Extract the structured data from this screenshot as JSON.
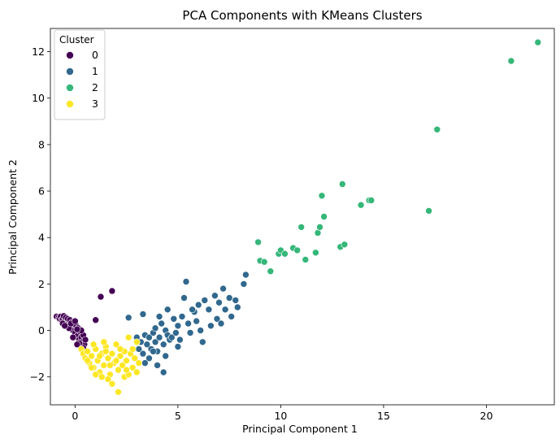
{
  "chart_data": {
    "type": "scatter",
    "title": "PCA Components with KMeans Clusters",
    "xlabel": "Principal Component 1",
    "ylabel": "Principal Component 2",
    "xlim": [
      -1.2,
      23.3
    ],
    "ylim": [
      -3.2,
      13.0
    ],
    "xticks": [
      0,
      5,
      10,
      15,
      20
    ],
    "yticks": [
      -2,
      0,
      2,
      4,
      6,
      8,
      10,
      12
    ],
    "grid": false,
    "legend": {
      "title": "Cluster",
      "position": "top-left"
    },
    "series": [
      {
        "name": "0",
        "color": "#440154",
        "points": [
          [
            -0.9,
            0.6
          ],
          [
            -0.8,
            0.55
          ],
          [
            -0.75,
            0.5
          ],
          [
            -0.7,
            0.6
          ],
          [
            -0.65,
            0.45
          ],
          [
            -0.6,
            0.5
          ],
          [
            -0.55,
            0.62
          ],
          [
            -0.5,
            0.4
          ],
          [
            -0.45,
            0.55
          ],
          [
            -0.4,
            0.3
          ],
          [
            -0.35,
            0.5
          ],
          [
            -0.3,
            0.2
          ],
          [
            -0.25,
            0.45
          ],
          [
            -0.2,
            0.1
          ],
          [
            -0.15,
            0.35
          ],
          [
            -0.1,
            0.0
          ],
          [
            -0.05,
            0.25
          ],
          [
            0.0,
            -0.1
          ],
          [
            0.05,
            0.2
          ],
          [
            0.1,
            -0.25
          ],
          [
            0.15,
            0.1
          ],
          [
            0.2,
            -0.4
          ],
          [
            0.25,
            -0.05
          ],
          [
            0.3,
            -0.3
          ],
          [
            0.35,
            -0.5
          ],
          [
            0.4,
            -0.2
          ],
          [
            0.45,
            -0.6
          ],
          [
            0.5,
            -0.4
          ],
          [
            -0.3,
            0.1
          ],
          [
            -0.2,
            0.3
          ],
          [
            0.0,
            0.4
          ],
          [
            -0.6,
            0.3
          ],
          [
            -0.5,
            0.2
          ],
          [
            0.3,
            0.0
          ],
          [
            0.1,
            0.05
          ],
          [
            -0.1,
            -0.3
          ],
          [
            0.2,
            -0.55
          ],
          [
            0.4,
            -0.75
          ],
          [
            0.1,
            -0.6
          ],
          [
            1.8,
            1.7
          ],
          [
            1.25,
            1.45
          ],
          [
            1.0,
            0.45
          ]
        ]
      },
      {
        "name": "1",
        "color": "#31688e",
        "points": [
          [
            2.6,
            0.55
          ],
          [
            3.3,
            0.7
          ],
          [
            3.0,
            -0.3
          ],
          [
            3.2,
            -0.5
          ],
          [
            3.4,
            -0.2
          ],
          [
            3.5,
            -0.6
          ],
          [
            3.6,
            -0.3
          ],
          [
            3.7,
            -0.8
          ],
          [
            3.8,
            -0.1
          ],
          [
            3.9,
            -0.5
          ],
          [
            4.0,
            -0.9
          ],
          [
            4.1,
            -0.3
          ],
          [
            4.2,
            0.3
          ],
          [
            4.3,
            -0.6
          ],
          [
            4.4,
            0.0
          ],
          [
            4.5,
            -0.2
          ],
          [
            4.6,
            -0.4
          ],
          [
            3.3,
            -1.0
          ],
          [
            3.6,
            -1.2
          ],
          [
            4.0,
            -1.5
          ],
          [
            4.3,
            -1.8
          ],
          [
            4.4,
            -1.1
          ],
          [
            4.1,
            0.6
          ],
          [
            4.5,
            0.9
          ],
          [
            5.0,
            0.2
          ],
          [
            5.1,
            -0.4
          ],
          [
            5.2,
            0.6
          ],
          [
            5.3,
            1.4
          ],
          [
            5.4,
            2.1
          ],
          [
            5.5,
            0.3
          ],
          [
            5.6,
            -0.1
          ],
          [
            5.8,
            0.8
          ],
          [
            5.9,
            0.4
          ],
          [
            6.0,
            1.1
          ],
          [
            6.2,
            -0.5
          ],
          [
            6.3,
            1.3
          ],
          [
            6.5,
            0.9
          ],
          [
            6.6,
            0.2
          ],
          [
            6.8,
            1.5
          ],
          [
            6.9,
            0.5
          ],
          [
            7.0,
            1.2
          ],
          [
            7.1,
            0.3
          ],
          [
            7.2,
            1.8
          ],
          [
            7.3,
            0.9
          ],
          [
            7.5,
            1.4
          ],
          [
            7.6,
            0.6
          ],
          [
            7.8,
            1.3
          ],
          [
            7.9,
            1.0
          ],
          [
            8.2,
            2.0
          ],
          [
            8.3,
            2.4
          ],
          [
            5.0,
            -0.7
          ],
          [
            4.8,
            0.5
          ],
          [
            3.9,
            0.1
          ],
          [
            4.7,
            -0.3
          ],
          [
            3.1,
            -0.8
          ],
          [
            3.4,
            -1.4
          ],
          [
            6.1,
            0.0
          ],
          [
            5.7,
            0.9
          ],
          [
            4.9,
            -0.1
          ],
          [
            3.8,
            -0.9
          ]
        ]
      },
      {
        "name": "2",
        "color": "#35b779",
        "points": [
          [
            8.9,
            3.8
          ],
          [
            9.0,
            3.0
          ],
          [
            9.2,
            2.95
          ],
          [
            9.5,
            2.55
          ],
          [
            9.9,
            3.3
          ],
          [
            10.0,
            3.45
          ],
          [
            10.2,
            3.3
          ],
          [
            10.6,
            3.55
          ],
          [
            10.8,
            3.45
          ],
          [
            11.0,
            4.45
          ],
          [
            11.2,
            3.05
          ],
          [
            11.7,
            3.35
          ],
          [
            11.8,
            4.2
          ],
          [
            11.9,
            4.45
          ],
          [
            12.0,
            5.8
          ],
          [
            12.1,
            4.9
          ],
          [
            12.9,
            3.6
          ],
          [
            13.1,
            3.7
          ],
          [
            13.0,
            6.3
          ],
          [
            13.9,
            5.4
          ],
          [
            14.3,
            5.6
          ],
          [
            14.4,
            5.6
          ],
          [
            17.2,
            5.15
          ],
          [
            17.6,
            8.65
          ],
          [
            21.2,
            11.6
          ],
          [
            22.5,
            12.4
          ]
        ]
      },
      {
        "name": "3",
        "color": "#fde725",
        "points": [
          [
            0.3,
            -0.8
          ],
          [
            0.4,
            -1.0
          ],
          [
            0.5,
            -1.2
          ],
          [
            0.6,
            -0.9
          ],
          [
            0.7,
            -1.4
          ],
          [
            0.8,
            -1.1
          ],
          [
            0.9,
            -1.6
          ],
          [
            1.0,
            -0.8
          ],
          [
            1.1,
            -1.3
          ],
          [
            1.2,
            -1.8
          ],
          [
            1.3,
            -1.0
          ],
          [
            1.4,
            -1.5
          ],
          [
            1.5,
            -0.7
          ],
          [
            1.6,
            -1.2
          ],
          [
            1.7,
            -1.9
          ],
          [
            1.8,
            -1.0
          ],
          [
            1.9,
            -1.4
          ],
          [
            2.0,
            -0.6
          ],
          [
            2.1,
            -1.7
          ],
          [
            2.2,
            -1.1
          ],
          [
            2.3,
            -1.5
          ],
          [
            2.4,
            -0.9
          ],
          [
            2.5,
            -1.3
          ],
          [
            2.6,
            -0.3
          ],
          [
            2.7,
            -1.0
          ],
          [
            2.8,
            -1.6
          ],
          [
            2.9,
            -1.2
          ],
          [
            3.0,
            -1.8
          ],
          [
            3.1,
            -1.4
          ],
          [
            1.6,
            -2.1
          ],
          [
            1.8,
            -2.3
          ],
          [
            2.1,
            -2.65
          ],
          [
            2.4,
            -2.0
          ],
          [
            2.6,
            -1.9
          ],
          [
            1.3,
            -2.0
          ],
          [
            1.0,
            -1.9
          ],
          [
            0.8,
            -1.6
          ],
          [
            0.6,
            -1.3
          ],
          [
            1.5,
            -0.9
          ],
          [
            2.0,
            -1.3
          ],
          [
            2.2,
            -0.8
          ],
          [
            1.2,
            -1.1
          ],
          [
            0.9,
            -0.6
          ],
          [
            1.7,
            -1.5
          ],
          [
            2.5,
            -1.7
          ],
          [
            2.8,
            -0.8
          ],
          [
            3.0,
            -0.5
          ],
          [
            1.4,
            -0.5
          ]
        ]
      }
    ]
  }
}
